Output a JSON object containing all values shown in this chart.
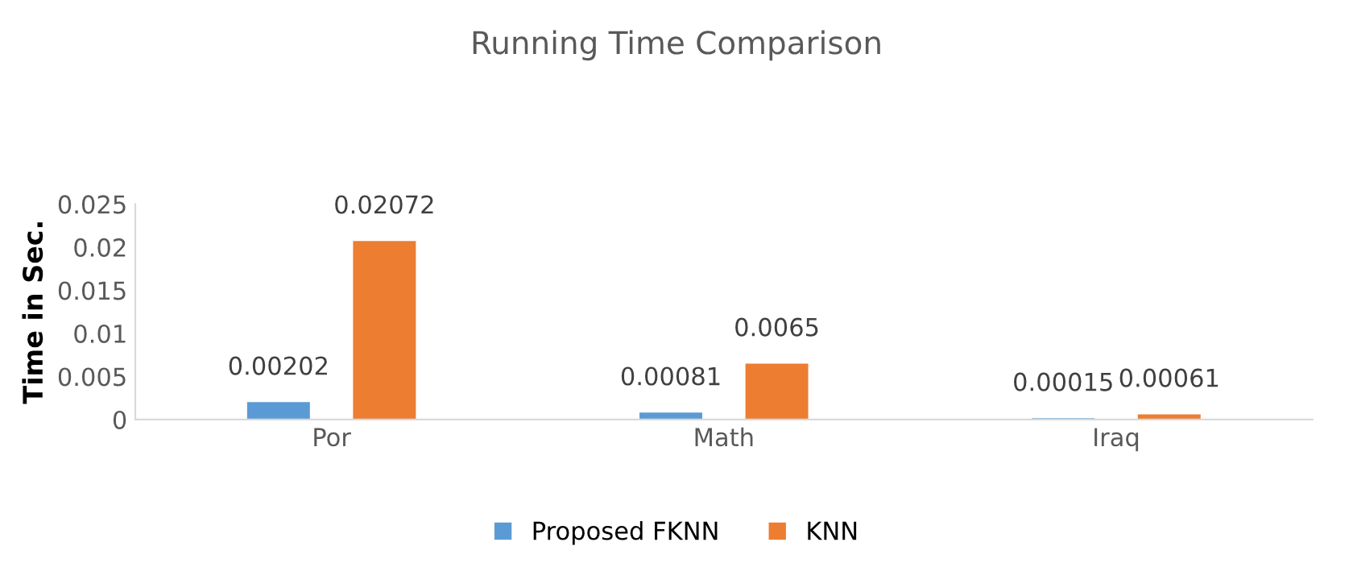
{
  "chart_data": {
    "type": "bar",
    "title": "Running Time Comparison",
    "ylabel": "Time in Sec.",
    "categories": [
      "Por",
      "Math",
      "Iraq"
    ],
    "series": [
      {
        "name": "Proposed FKNN",
        "color": "#5b9bd5",
        "values": [
          0.00202,
          0.00081,
          0.00015
        ]
      },
      {
        "name": "KNN",
        "color": "#ed7d31",
        "values": [
          0.02072,
          0.0065,
          0.00061
        ]
      }
    ],
    "ylim": [
      0,
      0.025
    ],
    "yticks": [
      0,
      0.005,
      0.01,
      0.015,
      0.02,
      0.025
    ],
    "grid": false,
    "legend": "bottom",
    "data_labels": true
  }
}
